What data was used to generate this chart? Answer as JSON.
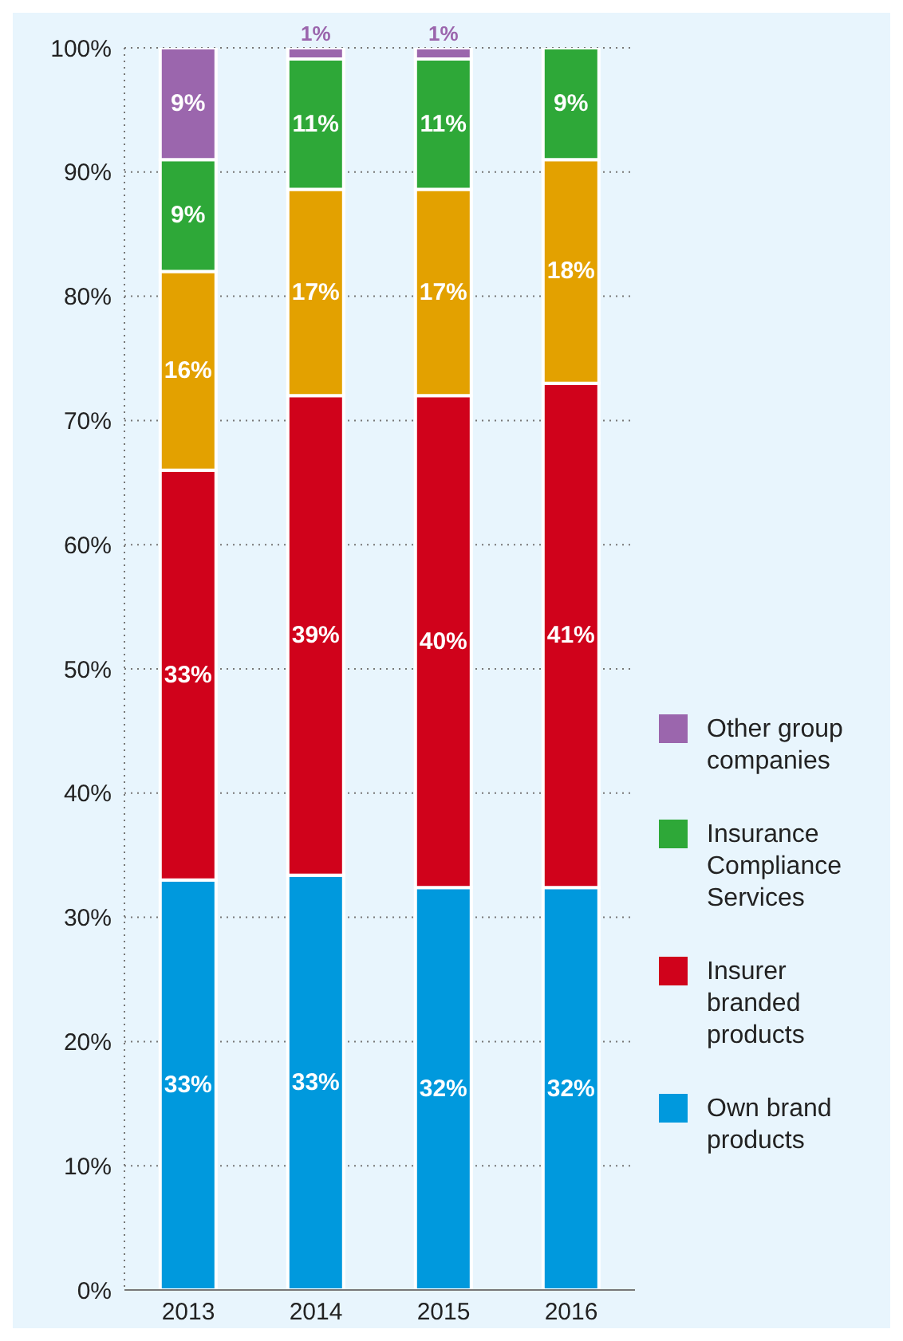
{
  "chart_data": {
    "type": "bar",
    "stacked": true,
    "categories": [
      "2013",
      "2014",
      "2015",
      "2016"
    ],
    "series": [
      {
        "name": "Own brand products",
        "color": "#0099dd",
        "values": [
          33,
          33.4,
          32.4,
          32.4
        ],
        "value_labels": [
          "33%",
          "33%",
          "32%",
          "32%"
        ]
      },
      {
        "name": "Insurer branded products",
        "color": "#d0021b",
        "values": [
          33,
          38.6,
          39.6,
          40.6
        ],
        "value_labels": [
          "33%",
          "39%",
          "40%",
          "41%"
        ]
      },
      {
        "color": "#e3a100",
        "values": [
          16,
          16.6,
          16.6,
          18
        ],
        "value_labels": [
          "16%",
          "17%",
          "17%",
          "18%"
        ]
      },
      {
        "name": "Insurance Compliance Services",
        "color": "#2ea838",
        "values": [
          9,
          10.5,
          10.5,
          9
        ],
        "value_labels": [
          "9%",
          "11%",
          "11%",
          "9%"
        ]
      },
      {
        "name": "Other group companies",
        "color": "#9b66ad",
        "values": [
          9,
          0.9,
          0.9,
          null
        ],
        "value_labels": [
          "9%",
          "1%",
          "1%",
          null
        ]
      }
    ],
    "ylim": [
      0,
      100
    ],
    "yticks": [
      {
        "value": 0,
        "label": "0%"
      },
      {
        "value": 10,
        "label": "10%"
      },
      {
        "value": 20,
        "label": "20%"
      },
      {
        "value": 30,
        "label": "30%"
      },
      {
        "value": 40,
        "label": "40%"
      },
      {
        "value": 50,
        "label": "50%"
      },
      {
        "value": 60,
        "label": "60%"
      },
      {
        "value": 70,
        "label": "70%"
      },
      {
        "value": 80,
        "label": "80%"
      },
      {
        "value": 90,
        "label": "90%"
      },
      {
        "value": 100,
        "label": "100%"
      }
    ],
    "grid": "y",
    "legend": "right"
  }
}
